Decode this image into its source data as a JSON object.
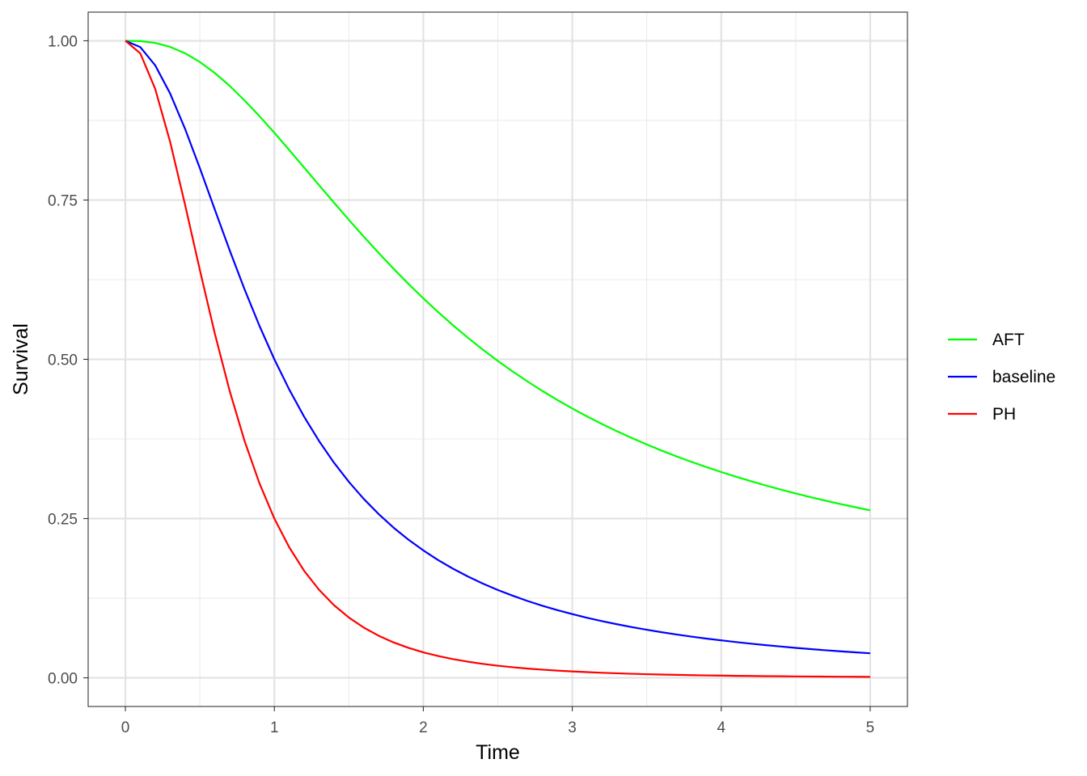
{
  "chart_data": {
    "type": "line",
    "xlabel": "Time",
    "ylabel": "Survival",
    "xlim": [
      -0.25,
      5.25
    ],
    "ylim": [
      -0.045,
      1.045
    ],
    "x_ticks": [
      0,
      1,
      2,
      3,
      4,
      5
    ],
    "x_tick_labels": [
      "0",
      "1",
      "2",
      "3",
      "4",
      "5"
    ],
    "x_minor_ticks": [
      0.5,
      1.5,
      2.5,
      3.5,
      4.5
    ],
    "y_ticks": [
      0,
      0.25,
      0.5,
      0.75,
      1
    ],
    "y_tick_labels": [
      "0.00",
      "0.25",
      "0.50",
      "0.75",
      "1.00"
    ],
    "y_minor_ticks": [
      0.125,
      0.375,
      0.625,
      0.875
    ],
    "grid": true,
    "legend_position": "right",
    "x": [
      0,
      0.1,
      0.2,
      0.3,
      0.4,
      0.5,
      0.6,
      0.7,
      0.8,
      0.9,
      1.0,
      1.1,
      1.2,
      1.3,
      1.4,
      1.5,
      1.6,
      1.7,
      1.8,
      1.9,
      2.0,
      2.1,
      2.2,
      2.3,
      2.4,
      2.5,
      2.6,
      2.7,
      2.8,
      2.9,
      3.0,
      3.1,
      3.2,
      3.3,
      3.4,
      3.5,
      3.6,
      3.7,
      3.8,
      3.9,
      4.0,
      4.1,
      4.2,
      4.3,
      4.4,
      4.5,
      4.6,
      4.7,
      4.8,
      4.9,
      5.0
    ],
    "series": [
      {
        "name": "AFT",
        "color": "#00ff00",
        "values": [
          1.0,
          0.9995,
          0.9967,
          0.9905,
          0.9805,
          0.9667,
          0.9495,
          0.9292,
          0.9064,
          0.8817,
          0.8556,
          0.8285,
          0.801,
          0.7734,
          0.746,
          0.719,
          0.6926,
          0.667,
          0.6422,
          0.6184,
          0.5957,
          0.574,
          0.5533,
          0.5337,
          0.5151,
          0.4975,
          0.4808,
          0.4651,
          0.4502,
          0.4361,
          0.4228,
          0.4102,
          0.3983,
          0.3871,
          0.3764,
          0.3663,
          0.3567,
          0.3476,
          0.339,
          0.3308,
          0.323,
          0.3156,
          0.3086,
          0.3019,
          0.2955,
          0.2894,
          0.2836,
          0.2781,
          0.2728,
          0.2678,
          0.263
        ]
      },
      {
        "name": "baseline",
        "color": "#0000ff",
        "values": [
          1.0,
          0.9901,
          0.9615,
          0.9174,
          0.8621,
          0.8,
          0.7353,
          0.6711,
          0.6098,
          0.5525,
          0.5,
          0.4525,
          0.4098,
          0.3717,
          0.3378,
          0.3077,
          0.2809,
          0.2571,
          0.2358,
          0.2169,
          0.2,
          0.1848,
          0.1712,
          0.159,
          0.1479,
          0.1379,
          0.1289,
          0.1206,
          0.1131,
          0.1063,
          0.1,
          0.0942,
          0.089,
          0.0841,
          0.0796,
          0.0755,
          0.0716,
          0.068,
          0.0647,
          0.0616,
          0.0588,
          0.0561,
          0.0536,
          0.0513,
          0.0491,
          0.047,
          0.0451,
          0.0433,
          0.0416,
          0.04,
          0.0385
        ]
      },
      {
        "name": "PH",
        "color": "#ff0000",
        "values": [
          1.0,
          0.9803,
          0.9245,
          0.8416,
          0.7432,
          0.64,
          0.5407,
          0.4504,
          0.3718,
          0.3053,
          0.25,
          0.2048,
          0.1679,
          0.1382,
          0.1141,
          0.0947,
          0.0789,
          0.0661,
          0.0556,
          0.0471,
          0.04,
          0.0342,
          0.0293,
          0.0253,
          0.0219,
          0.019,
          0.0166,
          0.0145,
          0.0128,
          0.0113,
          0.01,
          0.0089,
          0.0079,
          0.0071,
          0.0063,
          0.0057,
          0.0051,
          0.0046,
          0.0042,
          0.0038,
          0.0035,
          0.0031,
          0.0029,
          0.0026,
          0.0024,
          0.0022,
          0.002,
          0.0019,
          0.0017,
          0.0016,
          0.0015
        ]
      }
    ]
  }
}
